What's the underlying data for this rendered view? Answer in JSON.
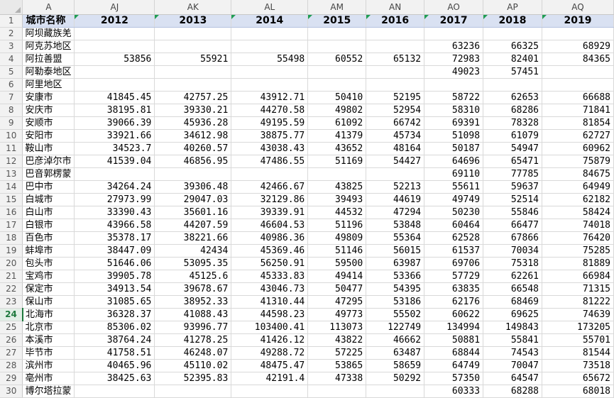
{
  "columns": [
    "A",
    "AJ",
    "AK",
    "AL",
    "AM",
    "AN",
    "AO",
    "AP",
    "AQ"
  ],
  "header_row": {
    "row_num": "1",
    "name": "城市名称",
    "years": [
      "2012",
      "2013",
      "2014",
      "2015",
      "2016",
      "2017",
      "2018",
      "2019"
    ]
  },
  "active_row": "24",
  "rows": [
    {
      "n": "2",
      "name": "阿坝藏族羌",
      "v": [
        "",
        "",
        "",
        "",
        "",
        "",
        "",
        ""
      ]
    },
    {
      "n": "3",
      "name": "阿克苏地区",
      "v": [
        "",
        "",
        "",
        "",
        "",
        "63236",
        "66325",
        "68929"
      ]
    },
    {
      "n": "4",
      "name": "阿拉善盟",
      "v": [
        "53856",
        "55921",
        "55498",
        "60552",
        "65132",
        "72983",
        "82401",
        "84365"
      ]
    },
    {
      "n": "5",
      "name": "阿勒泰地区",
      "v": [
        "",
        "",
        "",
        "",
        "",
        "49023",
        "57451",
        ""
      ]
    },
    {
      "n": "6",
      "name": "阿里地区",
      "v": [
        "",
        "",
        "",
        "",
        "",
        "",
        "",
        ""
      ]
    },
    {
      "n": "7",
      "name": "安康市",
      "v": [
        "41845.45",
        "42757.25",
        "43912.71",
        "50410",
        "52195",
        "58722",
        "62653",
        "66688"
      ]
    },
    {
      "n": "8",
      "name": "安庆市",
      "v": [
        "38195.81",
        "39330.21",
        "44270.58",
        "49802",
        "52954",
        "58310",
        "68286",
        "71841"
      ]
    },
    {
      "n": "9",
      "name": "安顺市",
      "v": [
        "39066.39",
        "45936.28",
        "49195.59",
        "61092",
        "66742",
        "69391",
        "78328",
        "81854"
      ]
    },
    {
      "n": "10",
      "name": "安阳市",
      "v": [
        "33921.66",
        "34612.98",
        "38875.77",
        "41379",
        "45734",
        "51098",
        "61079",
        "62727"
      ]
    },
    {
      "n": "11",
      "name": "鞍山市",
      "v": [
        "34523.7",
        "40260.57",
        "43038.43",
        "43652",
        "48164",
        "50187",
        "54947",
        "60962"
      ]
    },
    {
      "n": "12",
      "name": "巴彦淖尔市",
      "v": [
        "41539.04",
        "46856.95",
        "47486.55",
        "51169",
        "54427",
        "64696",
        "65471",
        "75879"
      ]
    },
    {
      "n": "13",
      "name": "巴音郭楞蒙",
      "v": [
        "",
        "",
        "",
        "",
        "",
        "69110",
        "77785",
        "84675"
      ]
    },
    {
      "n": "14",
      "name": "巴中市",
      "v": [
        "34264.24",
        "39306.48",
        "42466.67",
        "43825",
        "52213",
        "55611",
        "59637",
        "64949"
      ]
    },
    {
      "n": "15",
      "name": "白城市",
      "v": [
        "27973.99",
        "29047.03",
        "32129.86",
        "39493",
        "44619",
        "49749",
        "52514",
        "62182"
      ]
    },
    {
      "n": "16",
      "name": "白山市",
      "v": [
        "33390.43",
        "35601.16",
        "39339.91",
        "44532",
        "47294",
        "50230",
        "55846",
        "58424"
      ]
    },
    {
      "n": "17",
      "name": "白银市",
      "v": [
        "43966.58",
        "44207.59",
        "46604.53",
        "51196",
        "53848",
        "60464",
        "66477",
        "74018"
      ]
    },
    {
      "n": "18",
      "name": "百色市",
      "v": [
        "35378.17",
        "38221.66",
        "40986.36",
        "49809",
        "55364",
        "62528",
        "67866",
        "76420"
      ]
    },
    {
      "n": "19",
      "name": "蚌埠市",
      "v": [
        "38447.09",
        "42434",
        "45369.46",
        "51146",
        "56015",
        "61537",
        "70034",
        "75285"
      ]
    },
    {
      "n": "20",
      "name": "包头市",
      "v": [
        "51646.06",
        "53095.35",
        "56250.91",
        "59500",
        "63987",
        "69706",
        "75318",
        "81889"
      ]
    },
    {
      "n": "21",
      "name": "宝鸡市",
      "v": [
        "39905.78",
        "45125.6",
        "45333.83",
        "49414",
        "53366",
        "57729",
        "62261",
        "66984"
      ]
    },
    {
      "n": "22",
      "name": "保定市",
      "v": [
        "34913.54",
        "39678.67",
        "43046.73",
        "50477",
        "54395",
        "63835",
        "66548",
        "71315"
      ]
    },
    {
      "n": "23",
      "name": "保山市",
      "v": [
        "31085.65",
        "38952.33",
        "41310.44",
        "47295",
        "53186",
        "62176",
        "68469",
        "81222"
      ]
    },
    {
      "n": "24",
      "name": "北海市",
      "v": [
        "36328.37",
        "41088.43",
        "44598.23",
        "49773",
        "55502",
        "60622",
        "69625",
        "74639"
      ]
    },
    {
      "n": "25",
      "name": "北京市",
      "v": [
        "85306.02",
        "93996.77",
        "103400.41",
        "113073",
        "122749",
        "134994",
        "149843",
        "173205"
      ]
    },
    {
      "n": "26",
      "name": "本溪市",
      "v": [
        "38764.24",
        "41278.25",
        "41426.12",
        "43822",
        "46662",
        "50881",
        "55841",
        "55701"
      ]
    },
    {
      "n": "27",
      "name": "毕节市",
      "v": [
        "41758.51",
        "46248.07",
        "49288.72",
        "57225",
        "63487",
        "68844",
        "74543",
        "81544"
      ]
    },
    {
      "n": "28",
      "name": "滨州市",
      "v": [
        "40465.96",
        "45110.02",
        "48475.47",
        "53865",
        "58659",
        "64749",
        "70047",
        "73518"
      ]
    },
    {
      "n": "29",
      "name": "亳州市",
      "v": [
        "38425.63",
        "52395.83",
        "42191.4",
        "47338",
        "50292",
        "57350",
        "64547",
        "65672"
      ]
    },
    {
      "n": "30",
      "name": "博尔塔拉蒙",
      "v": [
        "",
        "",
        "",
        "",
        "",
        "60333",
        "68288",
        "68018"
      ]
    }
  ]
}
